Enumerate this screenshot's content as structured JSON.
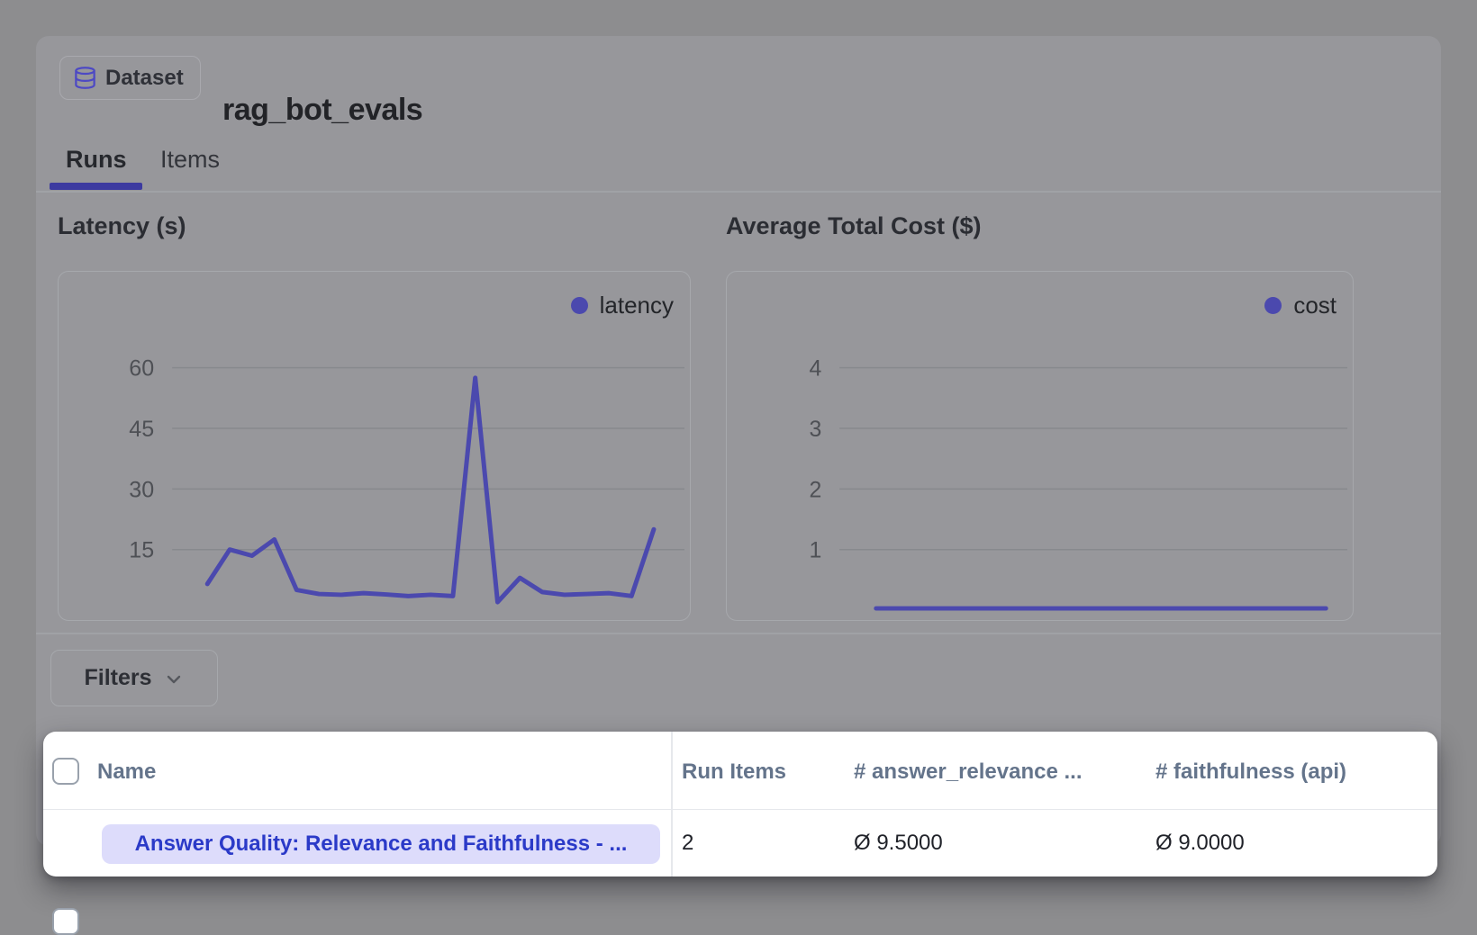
{
  "header": {
    "badge_label": "Dataset",
    "title": "rag_bot_evals"
  },
  "tabs": [
    {
      "label": "Runs",
      "active": true
    },
    {
      "label": "Items",
      "active": false
    }
  ],
  "chart_data": [
    {
      "type": "line",
      "title": "Latency (s)",
      "legend": "latency",
      "yticks": [
        60,
        45,
        30,
        15
      ],
      "ylim": [
        0,
        65
      ],
      "xlabel": "",
      "ylabel": "",
      "grid": true,
      "legend_position": "top-right",
      "values": [
        6.5,
        15,
        13.5,
        17.5,
        5,
        4,
        3.8,
        4.2,
        3.9,
        3.5,
        3.8,
        3.5,
        57.5,
        2,
        8,
        4.5,
        3.8,
        4,
        4.2,
        3.5,
        20
      ]
    },
    {
      "type": "line",
      "title": "Average Total Cost ($)",
      "legend": "cost",
      "yticks": [
        4,
        3,
        2,
        1
      ],
      "ylim": [
        0,
        4.5
      ],
      "xlabel": "",
      "ylabel": "",
      "grid": true,
      "legend_position": "top-right",
      "values": [
        0.03,
        0.03,
        0.03,
        0.03,
        0.03,
        0.03,
        0.03,
        0.03,
        0.03,
        0.03,
        0.03,
        0.03,
        0.03,
        0.03,
        0.03,
        0.03,
        0.03,
        0.03,
        0.03,
        0.03,
        0.03
      ]
    }
  ],
  "filters": {
    "label": "Filters"
  },
  "table": {
    "columns": [
      "Name",
      "Run Items",
      "# answer_relevance ...",
      "# faithfulness (api)"
    ],
    "rows": [
      {
        "name": "Answer Quality: Relevance and Faithfulness - ...",
        "run_items": "2",
        "answer_relevance": "Ø 9.5000",
        "faithfulness": "Ø 9.0000"
      }
    ]
  },
  "colors": {
    "accent_indigo": "#4b49ae",
    "tab_underline": "#3c3aa0",
    "pill_bg": "#dddcfb",
    "pill_text": "#2b3ac8",
    "table_header_text": "#64748b",
    "band_bg": "#ffffff",
    "gridline": "#87898d",
    "tick_label": "#4e5055"
  }
}
